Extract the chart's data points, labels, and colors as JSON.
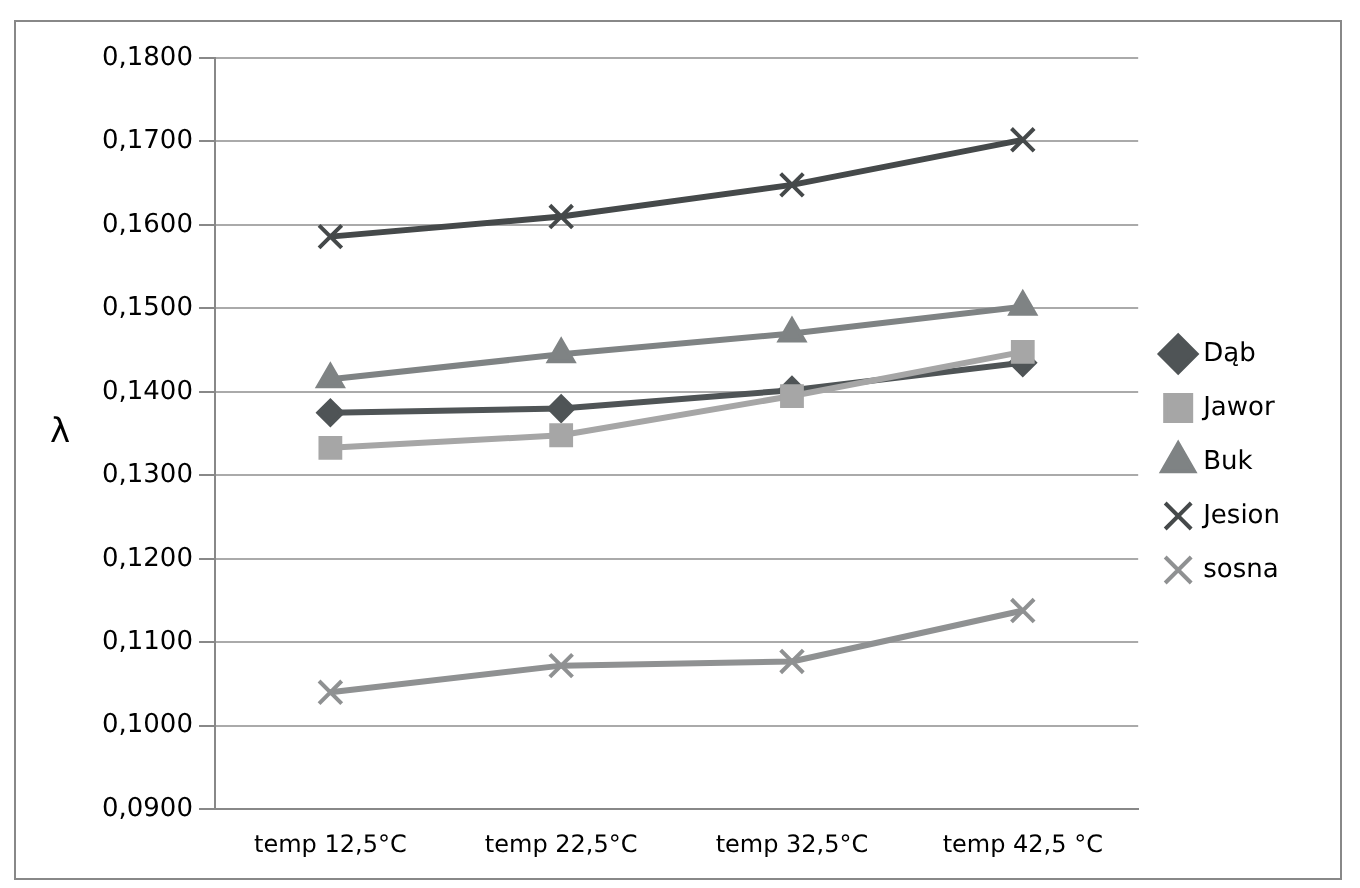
{
  "chart_data": {
    "type": "line",
    "ylabel": "λ",
    "categories": [
      "temp 12,5°C",
      "temp 22,5°C",
      "temp 32,5°C",
      "temp 42,5 °C"
    ],
    "series": [
      {
        "name": "Dąb",
        "color": "#4f5456",
        "marker": "diamond",
        "values": [
          0.1375,
          0.138,
          0.1402,
          0.1435
        ]
      },
      {
        "name": "Jawor",
        "color": "#a6a6a6",
        "marker": "square",
        "values": [
          0.1333,
          0.1348,
          0.1395,
          0.1448
        ]
      },
      {
        "name": "Buk",
        "color": "#7f8384",
        "marker": "triangle",
        "values": [
          0.1415,
          0.1445,
          0.147,
          0.1502
        ]
      },
      {
        "name": "Jesion",
        "color": "#45494a",
        "marker": "cross",
        "values": [
          0.1586,
          0.161,
          0.1648,
          0.1702
        ]
      },
      {
        "name": "sosna",
        "color": "#8f9192",
        "marker": "cross",
        "values": [
          0.104,
          0.1072,
          0.1077,
          0.1138
        ]
      }
    ],
    "ylim": [
      0.09,
      0.18
    ],
    "yticks": [
      {
        "value": 0.09,
        "label": "0,0900"
      },
      {
        "value": 0.1,
        "label": "0,1000"
      },
      {
        "value": 0.11,
        "label": "0,1100"
      },
      {
        "value": 0.12,
        "label": "0,1200"
      },
      {
        "value": 0.13,
        "label": "0,1300"
      },
      {
        "value": 0.14,
        "label": "0,1400"
      },
      {
        "value": 0.15,
        "label": "0,1500"
      },
      {
        "value": 0.16,
        "label": "0,1600"
      },
      {
        "value": 0.17,
        "label": "0,1700"
      },
      {
        "value": 0.18,
        "label": "0,1800"
      }
    ],
    "grid": "y",
    "legend": "right"
  }
}
